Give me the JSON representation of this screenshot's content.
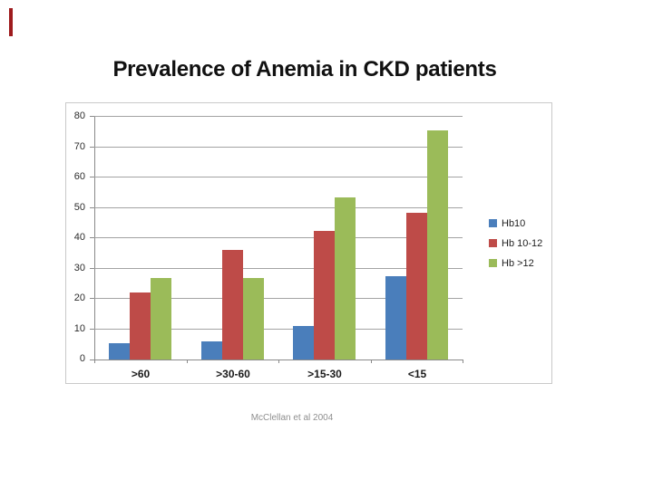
{
  "slide": {
    "title": "Prevalence of Anemia in CKD patients",
    "citation": "McClellan et al 2004",
    "accent_color": "#9e1b1e"
  },
  "chart_data": {
    "type": "bar",
    "title": "",
    "categories": [
      ">60",
      ">30-60",
      ">15-30",
      "<15"
    ],
    "series": [
      {
        "name": "Hb10",
        "color": "#4a7ebb",
        "values": [
          5.5,
          6,
          11,
          27.5
        ]
      },
      {
        "name": "Hb 10-12",
        "color": "#be4b48",
        "values": [
          22,
          36,
          42.5,
          48.5
        ]
      },
      {
        "name": "Hb >12",
        "color": "#9bbb59",
        "values": [
          27,
          27,
          53.5,
          75.5
        ]
      }
    ],
    "xlabel": "",
    "ylabel": "",
    "ylim": [
      0,
      80
    ],
    "yticks": [
      0,
      10,
      20,
      30,
      40,
      50,
      60,
      70,
      80
    ],
    "grid": true,
    "legend_position": "right"
  }
}
